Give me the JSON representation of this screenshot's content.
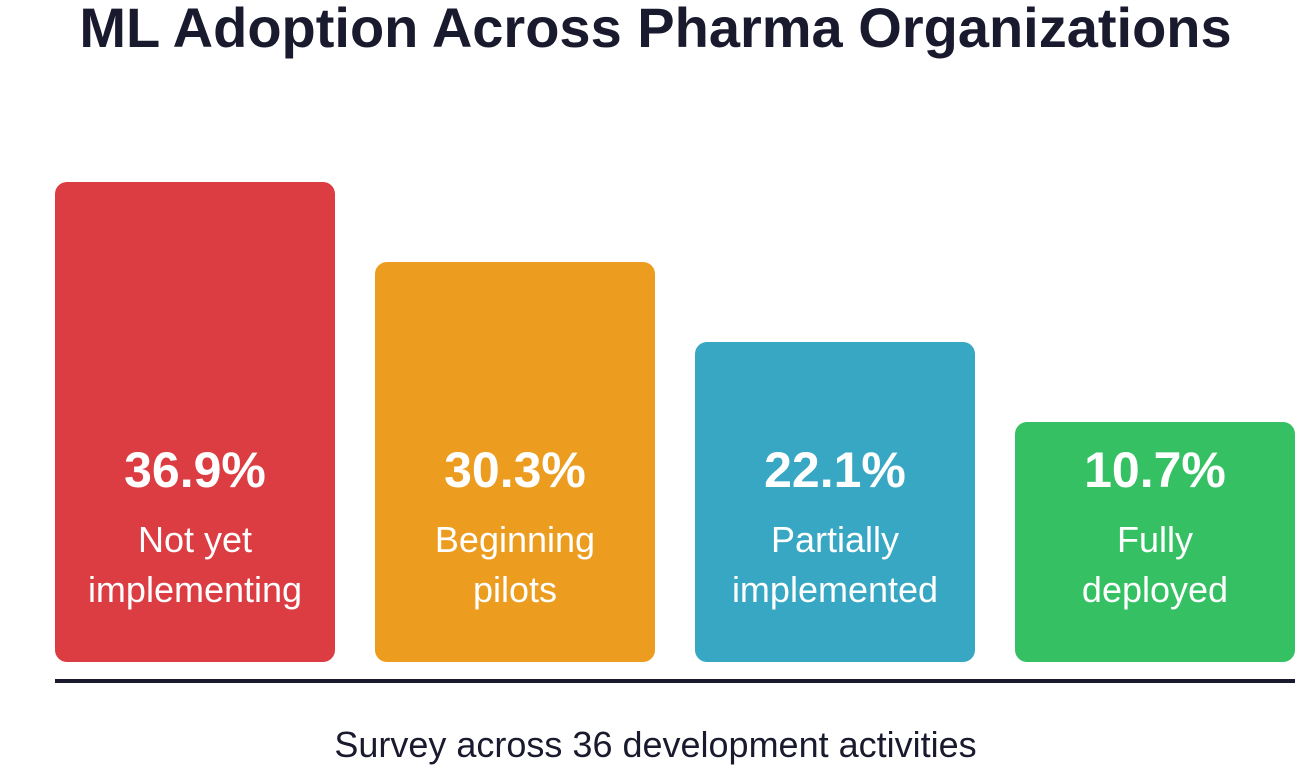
{
  "title": "ML Adoption Across Pharma Organizations",
  "caption": "Survey across 36 development activities",
  "chart_data": {
    "type": "bar",
    "title": "ML Adoption Across Pharma Organizations",
    "xlabel": "Survey across 36 development activities",
    "ylabel": "",
    "categories": [
      "Not yet implementing",
      "Beginning pilots",
      "Partially implemented",
      "Fully deployed"
    ],
    "category_lines": [
      [
        "Not yet",
        "implementing"
      ],
      [
        "Beginning",
        "pilots"
      ],
      [
        "Partially",
        "implemented"
      ],
      [
        "Fully",
        "deployed"
      ]
    ],
    "values": [
      36.9,
      30.3,
      22.1,
      10.7
    ],
    "value_labels": [
      "36.9%",
      "30.3%",
      "22.1%",
      "10.7%"
    ],
    "colors": [
      "#dc3d42",
      "#ec9c1f",
      "#38a7c3",
      "#35c163"
    ],
    "grid": false,
    "legend": "none"
  }
}
